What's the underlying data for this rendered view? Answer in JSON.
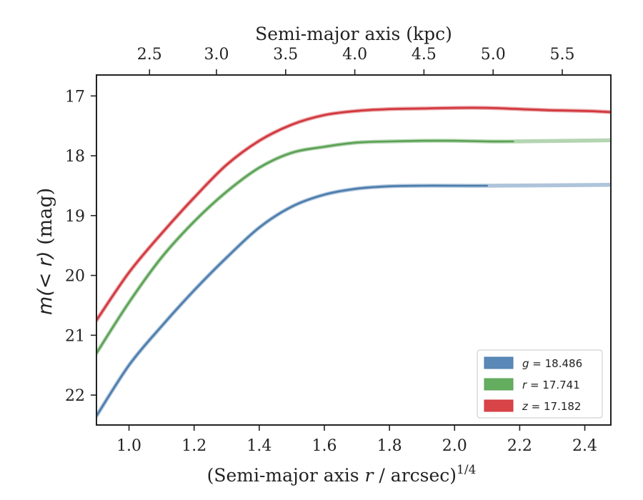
{
  "chart_data": {
    "type": "line",
    "xlabel_prefix": "(Semi-major axis ",
    "xlabel_var": "r",
    "xlabel_suffix": " / arcsec)",
    "xlabel_sup": "1/4",
    "top_xlabel": "Semi-major axis (kpc)",
    "ylabel_prefix": "m",
    "ylabel_var": "(< r)",
    "ylabel_suffix": " (mag)",
    "xlim": [
      0.9,
      2.48
    ],
    "ylim": [
      22.5,
      16.65
    ],
    "y_inverted": true,
    "x_ticks": [
      1.0,
      1.2,
      1.4,
      1.6,
      1.8,
      2.0,
      2.2,
      2.4
    ],
    "x_tick_labels": [
      "1.0",
      "1.2",
      "1.4",
      "1.6",
      "1.8",
      "2.0",
      "2.2",
      "2.4"
    ],
    "y_ticks": [
      17,
      18,
      19,
      20,
      21,
      22
    ],
    "y_tick_labels": [
      "17",
      "18",
      "19",
      "20",
      "21",
      "22"
    ],
    "top_ticks_kpc": [
      2.5,
      3.0,
      3.5,
      4.0,
      4.5,
      5.0,
      5.5
    ],
    "top_tick_labels": [
      "2.5",
      "3.0",
      "3.5",
      "4.0",
      "4.5",
      "5.0",
      "5.5"
    ],
    "top_tick_x_positions": [
      1.063,
      1.2686,
      1.4811,
      1.6935,
      1.9059,
      2.1184,
      2.3308
    ],
    "grid": false,
    "legend_position": "lower-right",
    "series": [
      {
        "name": "g = 18.486",
        "legend_var": "g",
        "legend_value": "18.486",
        "color": "#4c7cad",
        "model_end_x": 2.48,
        "model_end_y": 18.486,
        "data_end_x": 2.11,
        "x": [
          0.9,
          1.0,
          1.1,
          1.2,
          1.3,
          1.4,
          1.5,
          1.6,
          1.7,
          1.8,
          1.9,
          2.0,
          2.1
        ],
        "y": [
          22.35,
          21.5,
          20.85,
          20.25,
          19.7,
          19.2,
          18.85,
          18.65,
          18.55,
          18.51,
          18.5,
          18.5,
          18.5
        ]
      },
      {
        "name": "r = 17.741",
        "legend_var": "r",
        "legend_value": "17.741",
        "color": "#5aa154",
        "model_end_x": 2.48,
        "model_end_y": 17.741,
        "data_end_x": 2.18,
        "x": [
          0.9,
          1.0,
          1.1,
          1.2,
          1.3,
          1.4,
          1.5,
          1.6,
          1.7,
          1.8,
          1.9,
          2.0,
          2.1,
          2.18
        ],
        "y": [
          21.3,
          20.45,
          19.7,
          19.1,
          18.6,
          18.2,
          17.95,
          17.85,
          17.78,
          17.76,
          17.75,
          17.75,
          17.76,
          17.76
        ]
      },
      {
        "name": "z = 17.182",
        "legend_var": "z",
        "legend_value": "17.182",
        "color": "#d1363c",
        "model_end_x": 2.48,
        "model_end_y": 17.182,
        "data_end_x": 2.48,
        "x": [
          0.9,
          1.0,
          1.1,
          1.2,
          1.3,
          1.4,
          1.5,
          1.6,
          1.7,
          1.8,
          1.9,
          2.0,
          2.1,
          2.2,
          2.3,
          2.4,
          2.48
        ],
        "y": [
          20.75,
          19.95,
          19.3,
          18.7,
          18.15,
          17.75,
          17.48,
          17.32,
          17.25,
          17.22,
          17.21,
          17.2,
          17.2,
          17.22,
          17.24,
          17.25,
          17.27
        ]
      }
    ]
  }
}
